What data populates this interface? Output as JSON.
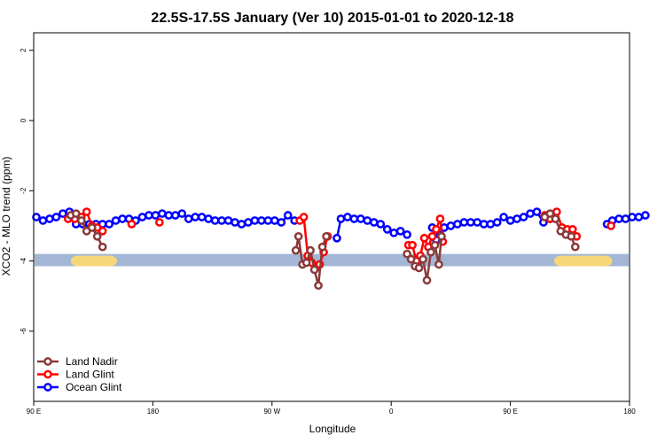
{
  "chart_data": {
    "type": "line",
    "title": "22.5S-17.5S January (Ver 10)   2015-01-01 to 2020-12-18",
    "xlabel": "Longitude",
    "ylabel": "XCO2 - MLO trend (ppm)",
    "xlim": [
      90,
      540
    ],
    "ylim": [
      -8,
      2.5
    ],
    "x_ticks": [
      {
        "value": 90,
        "label": "90 E"
      },
      {
        "value": 180,
        "label": "180"
      },
      {
        "value": 270,
        "label": "90 W"
      },
      {
        "value": 360,
        "label": "0"
      },
      {
        "value": 450,
        "label": "90 E"
      },
      {
        "value": 540,
        "label": "180"
      }
    ],
    "y_ticks": [
      {
        "value": 2,
        "label": "2"
      },
      {
        "value": 0,
        "label": "0"
      },
      {
        "value": -2,
        "label": "-2"
      },
      {
        "value": -4,
        "label": "-4"
      },
      {
        "value": -6,
        "label": "-6"
      }
    ],
    "legend": {
      "position": "bottom-left",
      "entries": [
        {
          "name": "Land Nadir",
          "color": "#8b3a3a"
        },
        {
          "name": "Land Glint",
          "color": "#ff0000"
        },
        {
          "name": "Ocean Glint",
          "color": "#0000ff"
        }
      ]
    },
    "land_band": {
      "y_range": [
        -4.15,
        -3.8
      ],
      "ocean_color": "#a3b6d6",
      "land_color": "#f6d77a",
      "land_segments": [
        [
          118,
          153
        ],
        [
          483,
          527
        ]
      ]
    },
    "series": [
      {
        "name": "Ocean Glint",
        "color": "#0000ff",
        "segments": [
          [
            [
              92,
              -2.75
            ],
            [
              97,
              -2.85
            ],
            [
              102,
              -2.8
            ],
            [
              107,
              -2.75
            ],
            [
              112,
              -2.65
            ],
            [
              117,
              -2.6
            ],
            [
              122,
              -2.95
            ],
            [
              127,
              -2.95
            ],
            [
              132,
              -2.95
            ],
            [
              137,
              -2.95
            ],
            [
              142,
              -2.95
            ],
            [
              147,
              -2.95
            ],
            [
              152,
              -2.85
            ],
            [
              157,
              -2.8
            ],
            [
              162,
              -2.8
            ],
            [
              167,
              -2.85
            ],
            [
              172,
              -2.75
            ],
            [
              177,
              -2.7
            ],
            [
              182,
              -2.7
            ],
            [
              187,
              -2.65
            ],
            [
              192,
              -2.7
            ],
            [
              197,
              -2.7
            ],
            [
              202,
              -2.65
            ],
            [
              207,
              -2.8
            ],
            [
              212,
              -2.75
            ],
            [
              217,
              -2.75
            ],
            [
              222,
              -2.8
            ],
            [
              227,
              -2.85
            ],
            [
              232,
              -2.85
            ],
            [
              237,
              -2.85
            ],
            [
              242,
              -2.9
            ],
            [
              247,
              -2.95
            ],
            [
              252,
              -2.9
            ],
            [
              257,
              -2.85
            ],
            [
              262,
              -2.85
            ],
            [
              267,
              -2.85
            ],
            [
              272,
              -2.85
            ],
            [
              277,
              -2.9
            ],
            [
              282,
              -2.7
            ],
            [
              287,
              -2.85
            ]
          ],
          [
            [
              319,
              -3.35
            ],
            [
              322,
              -2.8
            ],
            [
              327,
              -2.75
            ],
            [
              332,
              -2.8
            ],
            [
              337,
              -2.8
            ],
            [
              342,
              -2.85
            ],
            [
              347,
              -2.9
            ],
            [
              352,
              -2.95
            ],
            [
              357,
              -3.1
            ],
            [
              362,
              -3.2
            ],
            [
              367,
              -3.15
            ],
            [
              372,
              -3.25
            ]
          ],
          [
            [
              391,
              -3.05
            ],
            [
              394,
              -3.4
            ],
            [
              397,
              -3.25
            ],
            [
              400,
              -3.05
            ],
            [
              405,
              -3.0
            ],
            [
              410,
              -2.95
            ],
            [
              415,
              -2.9
            ],
            [
              420,
              -2.9
            ],
            [
              425,
              -2.9
            ],
            [
              430,
              -2.95
            ],
            [
              435,
              -2.95
            ],
            [
              440,
              -2.9
            ],
            [
              445,
              -2.75
            ],
            [
              450,
              -2.85
            ],
            [
              455,
              -2.8
            ],
            [
              460,
              -2.75
            ],
            [
              465,
              -2.65
            ],
            [
              470,
              -2.6
            ],
            [
              475,
              -2.9
            ],
            [
              480,
              -2.8
            ]
          ],
          [
            [
              523,
              -2.95
            ],
            [
              527,
              -2.85
            ],
            [
              532,
              -2.8
            ],
            [
              537,
              -2.8
            ],
            [
              542,
              -2.75
            ],
            [
              547,
              -2.75
            ],
            [
              552,
              -2.7
            ]
          ]
        ]
      },
      {
        "name": "Land Glint",
        "color": "#ff0000",
        "segments": [
          [
            [
              116,
              -2.8
            ],
            [
              121,
              -2.8
            ],
            [
              126,
              -2.75
            ],
            [
              130,
              -2.6
            ],
            [
              134,
              -3.0
            ],
            [
              138,
              -3.05
            ],
            [
              142,
              -3.15
            ]
          ],
          [
            [
              164,
              -2.95
            ]
          ],
          [
            [
              185,
              -2.9
            ]
          ],
          [
            [
              291,
              -2.85
            ],
            [
              294,
              -2.75
            ],
            [
              297,
              -3.85
            ],
            [
              300,
              -4.05
            ],
            [
              303,
              -4.2
            ],
            [
              306,
              -4.1
            ],
            [
              309,
              -3.75
            ],
            [
              312,
              -3.3
            ]
          ],
          [
            [
              373,
              -3.55
            ],
            [
              376,
              -3.55
            ],
            [
              379,
              -4.0
            ],
            [
              382,
              -3.85
            ],
            [
              385,
              -3.35
            ],
            [
              388,
              -3.6
            ],
            [
              391,
              -3.3
            ],
            [
              394,
              -3.1
            ],
            [
              397,
              -2.8
            ],
            [
              399,
              -3.45
            ]
          ],
          [
            [
              476,
              -2.7
            ],
            [
              480,
              -2.8
            ],
            [
              485,
              -2.6
            ],
            [
              489,
              -3.05
            ],
            [
              493,
              -3.1
            ],
            [
              497,
              -3.1
            ],
            [
              500,
              -3.3
            ]
          ],
          [
            [
              526,
              -3.0
            ]
          ]
        ]
      },
      {
        "name": "Land Nadir",
        "color": "#8b3a3a",
        "segments": [
          [
            [
              118,
              -2.7
            ],
            [
              122,
              -2.65
            ],
            [
              126,
              -2.85
            ],
            [
              130,
              -3.15
            ],
            [
              134,
              -3.05
            ],
            [
              138,
              -3.3
            ],
            [
              142,
              -3.6
            ]
          ],
          [
            [
              288,
              -3.7
            ],
            [
              290,
              -3.3
            ],
            [
              293,
              -4.1
            ],
            [
              296,
              -4.05
            ],
            [
              299,
              -3.7
            ],
            [
              302,
              -4.25
            ],
            [
              305,
              -4.7
            ],
            [
              308,
              -3.6
            ],
            [
              311,
              -3.3
            ]
          ],
          [
            [
              372,
              -3.8
            ],
            [
              375,
              -3.95
            ],
            [
              378,
              -4.15
            ],
            [
              381,
              -4.2
            ],
            [
              384,
              -3.95
            ],
            [
              387,
              -4.55
            ],
            [
              390,
              -3.75
            ],
            [
              393,
              -3.55
            ],
            [
              396,
              -4.1
            ],
            [
              398,
              -3.3
            ]
          ],
          [
            [
              476,
              -2.75
            ],
            [
              480,
              -2.65
            ],
            [
              484,
              -2.8
            ],
            [
              488,
              -3.15
            ],
            [
              492,
              -3.25
            ],
            [
              496,
              -3.3
            ],
            [
              499,
              -3.6
            ]
          ]
        ]
      }
    ]
  }
}
